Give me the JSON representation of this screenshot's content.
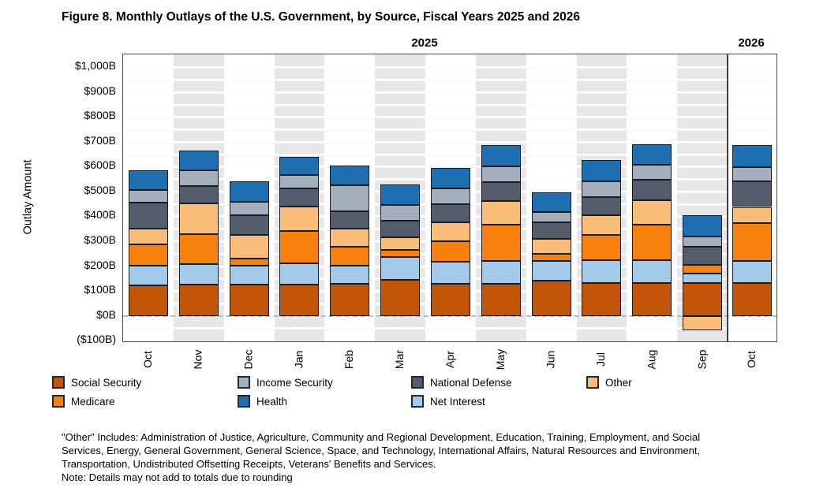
{
  "header": {
    "title": "Figure 8. Monthly Outlays of the U.S. Government, by Source, Fiscal Years 2025 and 2026"
  },
  "chart_data": {
    "type": "bar",
    "stacked": true,
    "title": "Figure 8. Monthly Outlays of the U.S. Government, by Source, Fiscal Years 2025 and 2026",
    "ylabel": "Outlay Amount",
    "unit": "billions of dollars",
    "ylim": [
      -103,
      1052
    ],
    "gridline_step": 50,
    "grid": true,
    "panels": [
      {
        "label": "2025",
        "months": 12
      },
      {
        "label": "2026",
        "months": 1
      }
    ],
    "categories": [
      "Oct",
      "Nov",
      "Dec",
      "Jan",
      "Feb",
      "Mar",
      "Apr",
      "May",
      "Jun",
      "Jul",
      "Aug",
      "Sep",
      "Oct"
    ],
    "y_ticks": [
      {
        "value": 1000,
        "label": "$1,000B"
      },
      {
        "value": 900,
        "label": "$900B"
      },
      {
        "value": 800,
        "label": "$800B"
      },
      {
        "value": 700,
        "label": "$700B"
      },
      {
        "value": 600,
        "label": "$600B"
      },
      {
        "value": 500,
        "label": "$500B"
      },
      {
        "value": 400,
        "label": "$400B"
      },
      {
        "value": 300,
        "label": "$300B"
      },
      {
        "value": 200,
        "label": "$200B"
      },
      {
        "value": 100,
        "label": "$100B"
      },
      {
        "value": 0,
        "label": "$0B"
      },
      {
        "value": -100,
        "label": "($100B)"
      }
    ],
    "series": [
      {
        "name": "Social Security",
        "color": "#C35508",
        "values": [
          122,
          124,
          124,
          126,
          128,
          143,
          128,
          130,
          140,
          133,
          133,
          133,
          133
        ]
      },
      {
        "name": "Net Interest",
        "color": "#A3CBE9",
        "values": [
          80,
          83,
          77,
          84,
          74,
          92,
          90,
          90,
          81,
          92,
          90,
          38,
          87
        ]
      },
      {
        "name": "Medicare",
        "color": "#F8800D",
        "values": [
          85,
          122,
          30,
          131,
          76,
          30,
          83,
          148,
          27,
          101,
          143,
          35,
          152
        ]
      },
      {
        "name": "Other",
        "color": "#FBBE78",
        "values": [
          64,
          124,
          94,
          98,
          74,
          50,
          76,
          94,
          61,
          79,
          98,
          -59,
          66
        ]
      },
      {
        "name": "National Defense",
        "color": "#555D6D",
        "values": [
          106,
          70,
          80,
          72,
          67,
          69,
          71,
          77,
          66,
          74,
          85,
          72,
          102
        ]
      },
      {
        "name": "Income Security",
        "color": "#A5AEBB",
        "values": [
          48,
          61,
          53,
          55,
          107,
          62,
          65,
          63,
          41,
          62,
          60,
          40,
          59
        ]
      },
      {
        "name": "Health",
        "color": "#1E6FB2",
        "values": [
          80,
          82,
          82,
          74,
          80,
          81,
          81,
          85,
          82,
          85,
          82,
          88,
          89
        ]
      }
    ],
    "legend_columns": [
      [
        "Social Security",
        "Medicare"
      ],
      [
        "Income Security",
        "Health"
      ],
      [
        "National Defense",
        "Net Interest"
      ],
      [
        "Other"
      ]
    ],
    "colors": {
      "stripe": "#E7E7E7",
      "segment_border": "#161C28",
      "axis_frame": "#4A4A4A",
      "separator": "#404040",
      "zero_line": "#B9B9B9"
    }
  },
  "footnote": {
    "other_note": "\"Other\" Includes: Administration of Justice, Agriculture, Community and Regional Development, Education, Training, Employment, and Social Services, Energy, General Government, General Science, Space, and Technology, International Affairs, Natural Resources and Environment, Transportation, Undistributed Offsetting Receipts, Veterans' Benefits and Services.",
    "rounding_note": "Note: Details may not add to totals due to rounding"
  }
}
